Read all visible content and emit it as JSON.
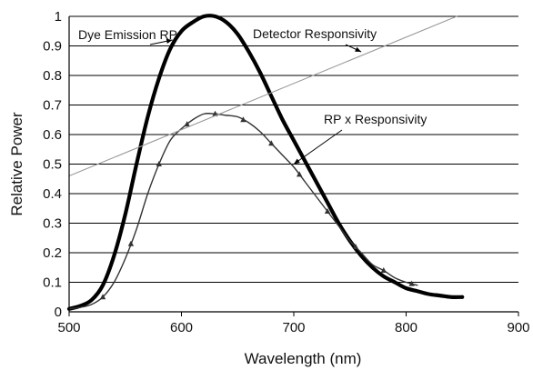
{
  "chart_data": {
    "type": "line",
    "title": "",
    "xlabel": "Wavelength (nm)",
    "ylabel": "Relative Power",
    "xlim": [
      500,
      900
    ],
    "ylim": [
      0,
      1
    ],
    "x_ticks": [
      "500",
      "600",
      "700",
      "800",
      "900"
    ],
    "y_ticks": [
      "0",
      "0.1",
      "0.2",
      "0.3",
      "0.4",
      "0.5",
      "0.6",
      "0.7",
      "0.8",
      "0.9",
      "1"
    ],
    "grid": "horizontal",
    "legend": "none",
    "series": [
      {
        "name": "Dye Emission RP",
        "color": "#000000",
        "x": [
          500,
          510,
          520,
          530,
          540,
          550,
          560,
          570,
          580,
          590,
          600,
          610,
          620,
          630,
          640,
          650,
          660,
          670,
          680,
          690,
          700,
          710,
          720,
          730,
          740,
          750,
          760,
          770,
          780,
          790,
          800,
          810,
          820,
          830,
          840,
          850
        ],
        "y": [
          0.01,
          0.02,
          0.04,
          0.09,
          0.19,
          0.33,
          0.5,
          0.66,
          0.79,
          0.89,
          0.95,
          0.98,
          1.0,
          1.0,
          0.98,
          0.94,
          0.88,
          0.81,
          0.73,
          0.65,
          0.58,
          0.51,
          0.44,
          0.37,
          0.3,
          0.24,
          0.19,
          0.15,
          0.12,
          0.1,
          0.08,
          0.07,
          0.06,
          0.055,
          0.05,
          0.05
        ]
      },
      {
        "name": "RP x Responsivity",
        "color": "#333333",
        "x": [
          500,
          510,
          520,
          530,
          540,
          550,
          560,
          570,
          580,
          590,
          600,
          610,
          620,
          630,
          640,
          650,
          660,
          670,
          680,
          690,
          700,
          710,
          720,
          730,
          740,
          750,
          760,
          770,
          780,
          790,
          800,
          810
        ],
        "y": [
          0.01,
          0.015,
          0.025,
          0.05,
          0.1,
          0.18,
          0.28,
          0.4,
          0.5,
          0.58,
          0.62,
          0.65,
          0.67,
          0.67,
          0.665,
          0.66,
          0.64,
          0.61,
          0.57,
          0.53,
          0.49,
          0.44,
          0.39,
          0.34,
          0.29,
          0.24,
          0.2,
          0.16,
          0.14,
          0.115,
          0.1,
          0.09
        ]
      },
      {
        "name": "Detector Responsivity",
        "color": "#999999",
        "x": [
          500,
          845
        ],
        "y": [
          0.46,
          1.0
        ]
      }
    ],
    "annotations": [
      {
        "text": "Dye Emission RP",
        "arrow_x": 592,
        "arrow_y": 0.92
      },
      {
        "text": "Detector Responsivity",
        "arrow_x": 760,
        "arrow_y": 0.88
      },
      {
        "text": "RP x Responsivity",
        "arrow_x": 700,
        "arrow_y": 0.5
      }
    ]
  }
}
